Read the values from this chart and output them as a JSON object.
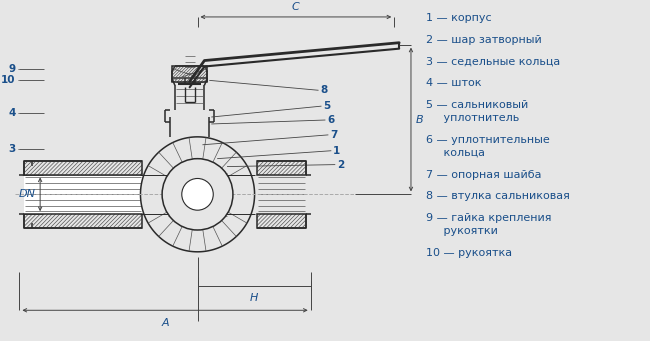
{
  "bg_color": "#e6e6e6",
  "line_color": "#2a2a2a",
  "hatch_color": "#555555",
  "text_color": "#1a4f8a",
  "dim_color": "#444444",
  "white": "#ffffff",
  "legend_items": [
    {
      "num": "1",
      "text": "— корпус"
    },
    {
      "num": "2",
      "text": "— шар затворный"
    },
    {
      "num": "3",
      "text": "— седельные кольца"
    },
    {
      "num": "4",
      "text": "— шток"
    },
    {
      "num": "5",
      "text": "— сальниковый\n     уплотнитель"
    },
    {
      "num": "6",
      "text": "— уплотнительные\n     кольца"
    },
    {
      "num": "7",
      "text": "— опорная шайба"
    },
    {
      "num": "8",
      "text": "— втулка сальниковая"
    },
    {
      "num": "9",
      "text": "— гайка крепления\n     рукоятки"
    },
    {
      "num": "10",
      "text": "— рукоятка"
    }
  ]
}
